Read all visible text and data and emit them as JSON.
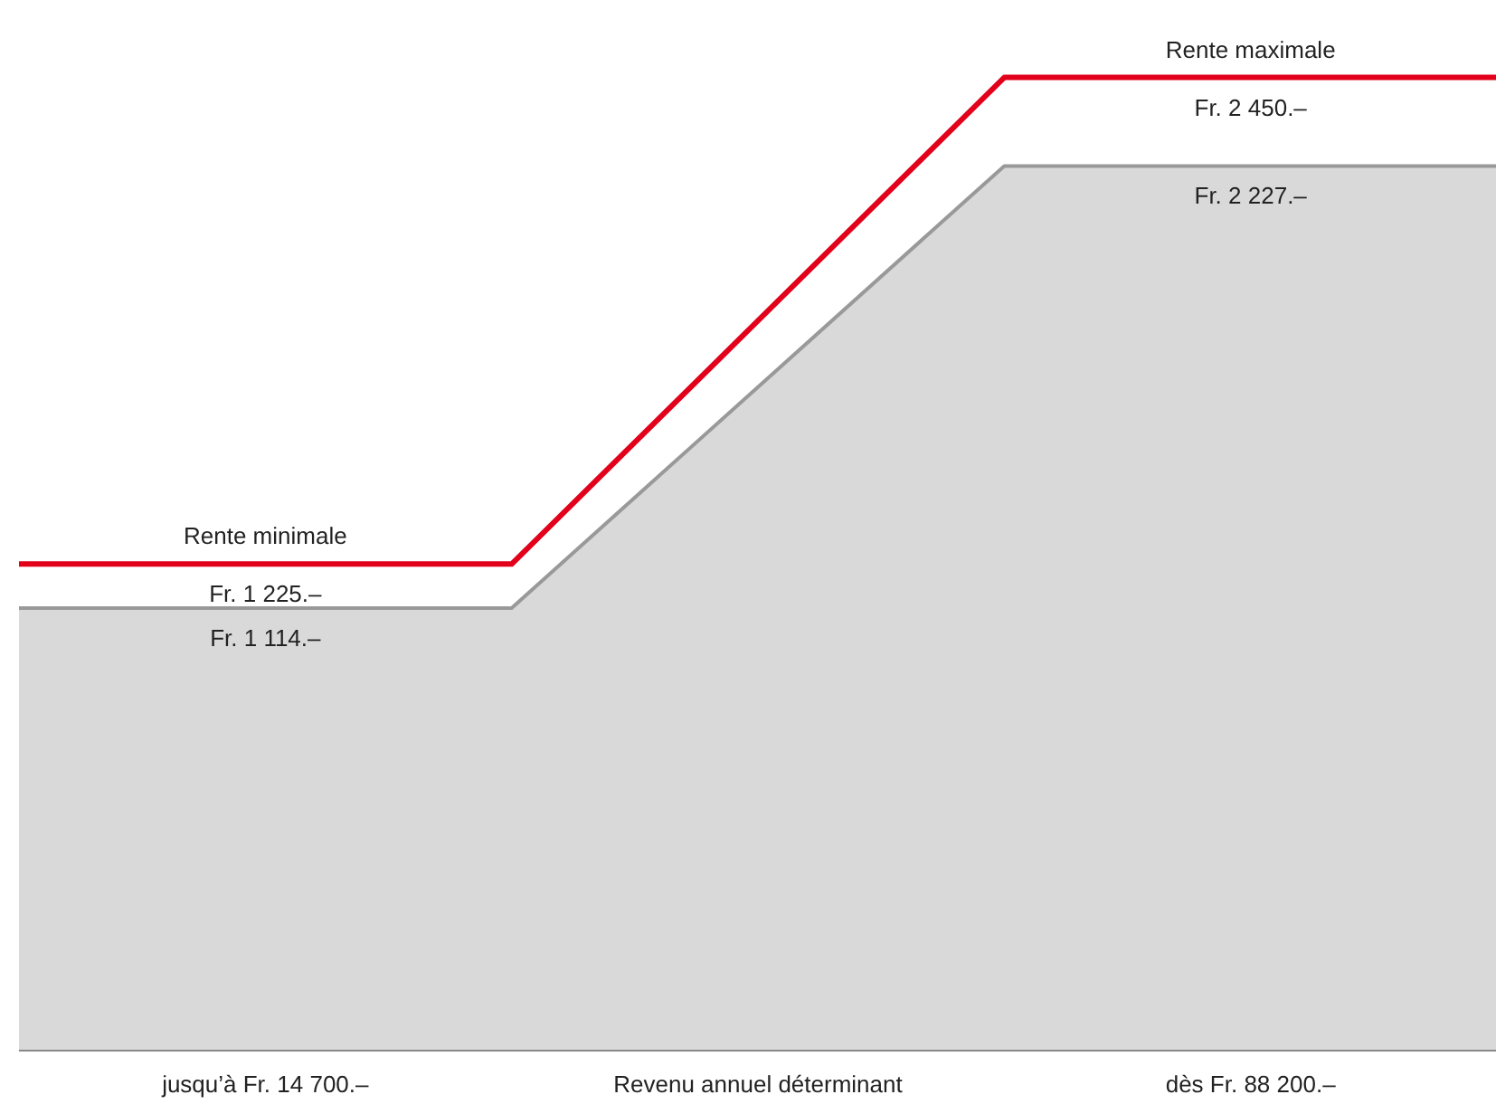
{
  "chart_data": {
    "type": "line",
    "categories": [
      null,
      "jusqu’à Fr. 14 700.–",
      null,
      "Revenu annuel déterminant",
      null,
      "dès Fr. 88 200.–",
      null
    ],
    "tick_labels": "x",
    "series": [
      {
        "type": "area",
        "color": "#d9d9d9",
        "values": [
          1114,
          1114,
          1114,
          1670.5,
          2227,
          2227,
          2227
        ],
        "value_labels": [
          null,
          "Fr. 1 114.–",
          null,
          null,
          null,
          "Fr. 2 227.–",
          null
        ]
      },
      {
        "color": "#e2001a",
        "values": [
          1225,
          1225,
          1225,
          1837.5,
          2450,
          2450,
          2450
        ],
        "value_labels": [
          null,
          "Fr. 1 225.–",
          null,
          null,
          null,
          "Fr. 2 450.–",
          null
        ]
      }
    ],
    "annotations": [
      {
        "text": "Rente minimale",
        "x": "jusqu’à Fr. 14 700.–",
        "y": 1225
      },
      {
        "text": "Rente maximale",
        "x": "dès Fr. 88 200.–",
        "y": 2450
      }
    ]
  }
}
